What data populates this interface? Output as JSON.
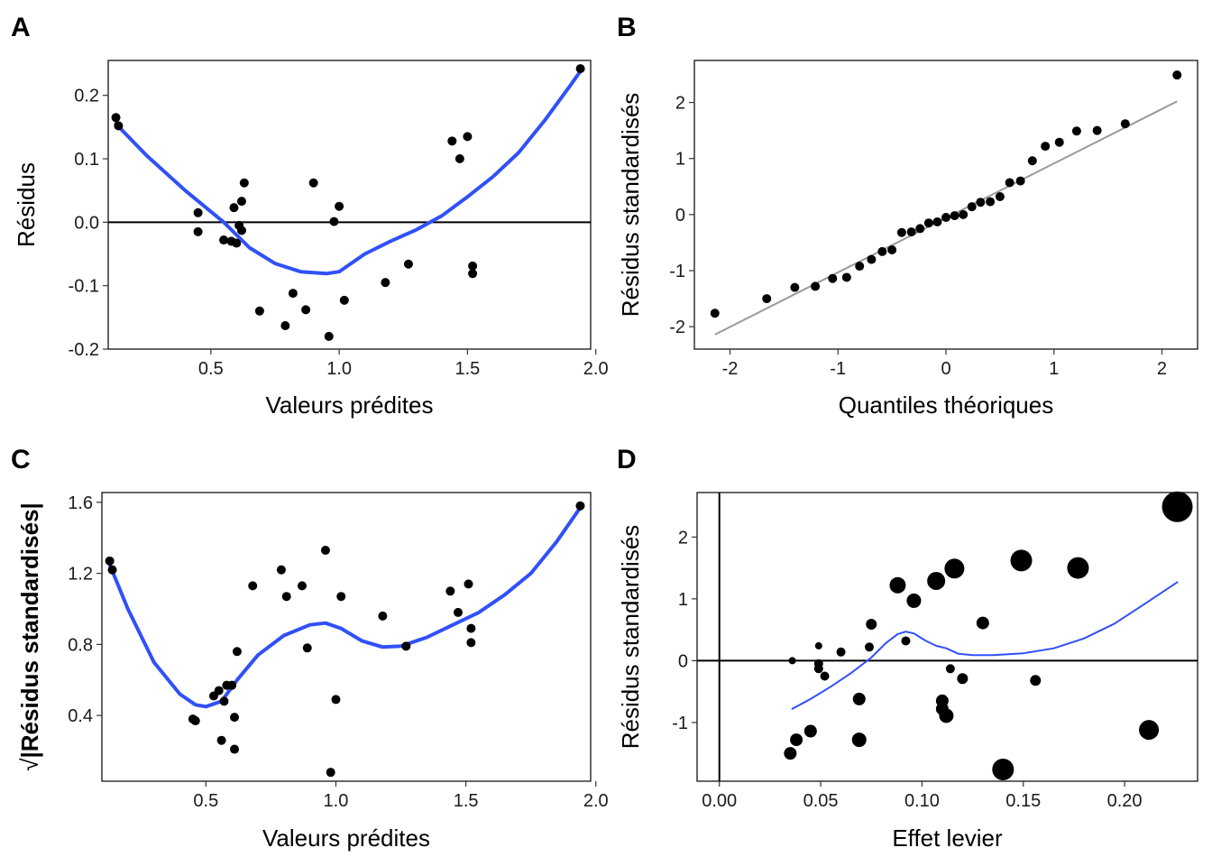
{
  "colors": {
    "smooth": "#3050F8",
    "point": "#000000",
    "qqline": "#999999"
  },
  "chart_data": [
    {
      "panel": "A",
      "type": "scatter",
      "xlabel": "Valeurs prédites",
      "ylabel": "Résidus",
      "xlim": [
        0.1,
        1.98
      ],
      "ylim": [
        -0.2,
        0.255
      ],
      "xticks": [
        {
          "v": 0.5,
          "label": "0.5"
        },
        {
          "v": 1.0,
          "label": "1.0"
        },
        {
          "v": 1.5,
          "label": "1.5"
        },
        {
          "v": 2.0,
          "label": "2.0"
        }
      ],
      "yticks": [
        {
          "v": -0.2,
          "label": "-0.2"
        },
        {
          "v": -0.1,
          "label": "-0.1"
        },
        {
          "v": 0.0,
          "label": "0.0"
        },
        {
          "v": 0.1,
          "label": "0.1"
        },
        {
          "v": 0.2,
          "label": "0.2"
        }
      ],
      "hline": 0,
      "points": [
        [
          0.13,
          0.165
        ],
        [
          0.14,
          0.152
        ],
        [
          0.45,
          0.015
        ],
        [
          0.45,
          -0.015
        ],
        [
          0.55,
          -0.028
        ],
        [
          0.58,
          -0.03
        ],
        [
          0.59,
          0.023
        ],
        [
          0.6,
          -0.033
        ],
        [
          0.61,
          -0.005
        ],
        [
          0.62,
          0.033
        ],
        [
          0.62,
          -0.013
        ],
        [
          0.63,
          0.062
        ],
        [
          0.69,
          -0.14
        ],
        [
          0.79,
          -0.163
        ],
        [
          0.82,
          -0.112
        ],
        [
          0.87,
          -0.138
        ],
        [
          0.9,
          0.062
        ],
        [
          0.96,
          -0.18
        ],
        [
          0.98,
          0.001
        ],
        [
          1.0,
          0.025
        ],
        [
          1.02,
          -0.123
        ],
        [
          1.18,
          -0.095
        ],
        [
          1.27,
          -0.066
        ],
        [
          1.44,
          0.128
        ],
        [
          1.47,
          0.1
        ],
        [
          1.5,
          0.135
        ],
        [
          1.52,
          -0.069
        ],
        [
          1.52,
          -0.081
        ],
        [
          1.94,
          0.242
        ]
      ],
      "smooth": [
        [
          0.13,
          0.155
        ],
        [
          0.25,
          0.105
        ],
        [
          0.4,
          0.05
        ],
        [
          0.55,
          0.0
        ],
        [
          0.65,
          -0.04
        ],
        [
          0.75,
          -0.065
        ],
        [
          0.85,
          -0.078
        ],
        [
          0.95,
          -0.081
        ],
        [
          1.0,
          -0.078
        ],
        [
          1.1,
          -0.05
        ],
        [
          1.2,
          -0.03
        ],
        [
          1.3,
          -0.012
        ],
        [
          1.4,
          0.01
        ],
        [
          1.5,
          0.04
        ],
        [
          1.6,
          0.072
        ],
        [
          1.7,
          0.11
        ],
        [
          1.8,
          0.16
        ],
        [
          1.9,
          0.215
        ],
        [
          1.94,
          0.238
        ]
      ],
      "smooth_width": 4
    },
    {
      "panel": "B",
      "type": "scatter",
      "xlabel": "Quantiles théoriques",
      "ylabel": "Résidus standardisés",
      "xlim": [
        -2.33,
        2.33
      ],
      "ylim": [
        -2.4,
        2.75
      ],
      "xticks": [
        {
          "v": -2,
          "label": "-2"
        },
        {
          "v": -1,
          "label": "-1"
        },
        {
          "v": 0,
          "label": "0"
        },
        {
          "v": 1,
          "label": "1"
        },
        {
          "v": 2,
          "label": "2"
        }
      ],
      "yticks": [
        {
          "v": -2,
          "label": "-2"
        },
        {
          "v": -1,
          "label": "-1"
        },
        {
          "v": 0,
          "label": "0"
        },
        {
          "v": 1,
          "label": "1"
        },
        {
          "v": 2,
          "label": "2"
        }
      ],
      "points": [
        [
          -2.14,
          -1.76
        ],
        [
          -1.66,
          -1.5
        ],
        [
          -1.4,
          -1.3
        ],
        [
          -1.21,
          -1.28
        ],
        [
          -1.05,
          -1.14
        ],
        [
          -0.92,
          -1.12
        ],
        [
          -0.8,
          -0.92
        ],
        [
          -0.69,
          -0.8
        ],
        [
          -0.59,
          -0.66
        ],
        [
          -0.5,
          -0.63
        ],
        [
          -0.41,
          -0.32
        ],
        [
          -0.32,
          -0.31
        ],
        [
          -0.24,
          -0.25
        ],
        [
          -0.16,
          -0.15
        ],
        [
          -0.08,
          -0.13
        ],
        [
          0.0,
          -0.05
        ],
        [
          0.08,
          -0.02
        ],
        [
          0.16,
          0.0
        ],
        [
          0.24,
          0.14
        ],
        [
          0.32,
          0.22
        ],
        [
          0.41,
          0.23
        ],
        [
          0.5,
          0.32
        ],
        [
          0.59,
          0.57
        ],
        [
          0.69,
          0.6
        ],
        [
          0.8,
          0.96
        ],
        [
          0.92,
          1.22
        ],
        [
          1.05,
          1.29
        ],
        [
          1.21,
          1.49
        ],
        [
          1.4,
          1.5
        ],
        [
          1.66,
          1.62
        ],
        [
          2.14,
          2.49
        ]
      ],
      "refline": [
        [
          -2.14,
          -2.14
        ],
        [
          2.14,
          2.02
        ]
      ]
    },
    {
      "panel": "C",
      "type": "scatter",
      "xlabel": "Valeurs prédites",
      "ylabel_prefix": "√",
      "ylabel": "|Résidus standardisés|",
      "xlim": [
        0.1,
        1.98
      ],
      "ylim": [
        0.03,
        1.655
      ],
      "xticks": [
        {
          "v": 0.5,
          "label": "0.5"
        },
        {
          "v": 1.0,
          "label": "1.0"
        },
        {
          "v": 1.5,
          "label": "1.5"
        },
        {
          "v": 2.0,
          "label": "2.0"
        }
      ],
      "yticks": [
        {
          "v": 0.4,
          "label": "0.4"
        },
        {
          "v": 0.8,
          "label": "0.8"
        },
        {
          "v": 1.2,
          "label": "1.2"
        },
        {
          "v": 1.6,
          "label": "1.6"
        }
      ],
      "points": [
        [
          0.13,
          1.27
        ],
        [
          0.14,
          1.22
        ],
        [
          0.45,
          0.38
        ],
        [
          0.46,
          0.37
        ],
        [
          0.53,
          0.51
        ],
        [
          0.55,
          0.54
        ],
        [
          0.56,
          0.26
        ],
        [
          0.57,
          0.48
        ],
        [
          0.58,
          0.57
        ],
        [
          0.6,
          0.57
        ],
        [
          0.61,
          0.21
        ],
        [
          0.61,
          0.39
        ],
        [
          0.62,
          0.76
        ],
        [
          0.68,
          1.13
        ],
        [
          0.79,
          1.22
        ],
        [
          0.81,
          1.07
        ],
        [
          0.87,
          1.13
        ],
        [
          0.89,
          0.78
        ],
        [
          0.96,
          1.33
        ],
        [
          0.98,
          0.08
        ],
        [
          1.0,
          0.49
        ],
        [
          1.02,
          1.07
        ],
        [
          1.18,
          0.96
        ],
        [
          1.27,
          0.79
        ],
        [
          1.44,
          1.1
        ],
        [
          1.47,
          0.98
        ],
        [
          1.51,
          1.14
        ],
        [
          1.52,
          0.89
        ],
        [
          1.52,
          0.81
        ],
        [
          1.94,
          1.58
        ]
      ],
      "smooth": [
        [
          0.13,
          1.25
        ],
        [
          0.2,
          1.0
        ],
        [
          0.3,
          0.7
        ],
        [
          0.4,
          0.52
        ],
        [
          0.46,
          0.46
        ],
        [
          0.5,
          0.45
        ],
        [
          0.56,
          0.48
        ],
        [
          0.62,
          0.6
        ],
        [
          0.7,
          0.74
        ],
        [
          0.8,
          0.85
        ],
        [
          0.9,
          0.91
        ],
        [
          0.96,
          0.92
        ],
        [
          1.02,
          0.89
        ],
        [
          1.1,
          0.82
        ],
        [
          1.18,
          0.785
        ],
        [
          1.25,
          0.79
        ],
        [
          1.35,
          0.84
        ],
        [
          1.45,
          0.91
        ],
        [
          1.55,
          0.98
        ],
        [
          1.65,
          1.08
        ],
        [
          1.75,
          1.2
        ],
        [
          1.85,
          1.38
        ],
        [
          1.94,
          1.57
        ]
      ],
      "smooth_width": 4
    },
    {
      "panel": "D",
      "type": "scatter",
      "xlabel": "Effet levier",
      "ylabel": "Résidus standardisés",
      "xlim": [
        -0.011,
        0.236
      ],
      "ylim": [
        -1.95,
        2.72
      ],
      "xticks": [
        {
          "v": 0.0,
          "label": "0.00"
        },
        {
          "v": 0.05,
          "label": "0.05"
        },
        {
          "v": 0.1,
          "label": "0.10"
        },
        {
          "v": 0.15,
          "label": "0.15"
        },
        {
          "v": 0.2,
          "label": "0.20"
        }
      ],
      "yticks": [
        {
          "v": -1,
          "label": "-1"
        },
        {
          "v": 0,
          "label": "0"
        },
        {
          "v": 1,
          "label": "1"
        },
        {
          "v": 2,
          "label": "2"
        }
      ],
      "hline": 0,
      "vline": 0,
      "points": [
        [
          0.036,
          0.0,
          4
        ],
        [
          0.035,
          -1.5,
          7
        ],
        [
          0.038,
          -1.28,
          7
        ],
        [
          0.045,
          -1.14,
          7
        ],
        [
          0.049,
          0.24,
          4
        ],
        [
          0.049,
          -0.05,
          5
        ],
        [
          0.049,
          -0.13,
          5
        ],
        [
          0.052,
          -0.25,
          5
        ],
        [
          0.06,
          0.14,
          5
        ],
        [
          0.069,
          -0.62,
          7
        ],
        [
          0.069,
          -1.28,
          8
        ],
        [
          0.074,
          0.22,
          5
        ],
        [
          0.075,
          0.59,
          6
        ],
        [
          0.088,
          1.22,
          9
        ],
        [
          0.092,
          0.32,
          5
        ],
        [
          0.096,
          0.97,
          8
        ],
        [
          0.107,
          1.29,
          10
        ],
        [
          0.11,
          -0.65,
          7
        ],
        [
          0.11,
          -0.78,
          7
        ],
        [
          0.112,
          -0.89,
          8
        ],
        [
          0.114,
          -0.13,
          5
        ],
        [
          0.116,
          1.49,
          11
        ],
        [
          0.12,
          -0.29,
          6
        ],
        [
          0.13,
          0.61,
          7
        ],
        [
          0.14,
          -1.76,
          12
        ],
        [
          0.149,
          1.62,
          12
        ],
        [
          0.156,
          -0.32,
          6
        ],
        [
          0.177,
          1.5,
          12
        ],
        [
          0.212,
          -1.12,
          11
        ],
        [
          0.226,
          2.49,
          17
        ]
      ],
      "smooth": [
        [
          0.036,
          -0.78
        ],
        [
          0.045,
          -0.62
        ],
        [
          0.055,
          -0.42
        ],
        [
          0.065,
          -0.2
        ],
        [
          0.075,
          0.05
        ],
        [
          0.082,
          0.28
        ],
        [
          0.088,
          0.43
        ],
        [
          0.092,
          0.47
        ],
        [
          0.096,
          0.44
        ],
        [
          0.102,
          0.32
        ],
        [
          0.107,
          0.24
        ],
        [
          0.112,
          0.2
        ],
        [
          0.118,
          0.11
        ],
        [
          0.125,
          0.09
        ],
        [
          0.135,
          0.09
        ],
        [
          0.15,
          0.12
        ],
        [
          0.165,
          0.2
        ],
        [
          0.18,
          0.36
        ],
        [
          0.195,
          0.6
        ],
        [
          0.21,
          0.92
        ],
        [
          0.226,
          1.27
        ]
      ],
      "smooth_width": 2
    }
  ]
}
